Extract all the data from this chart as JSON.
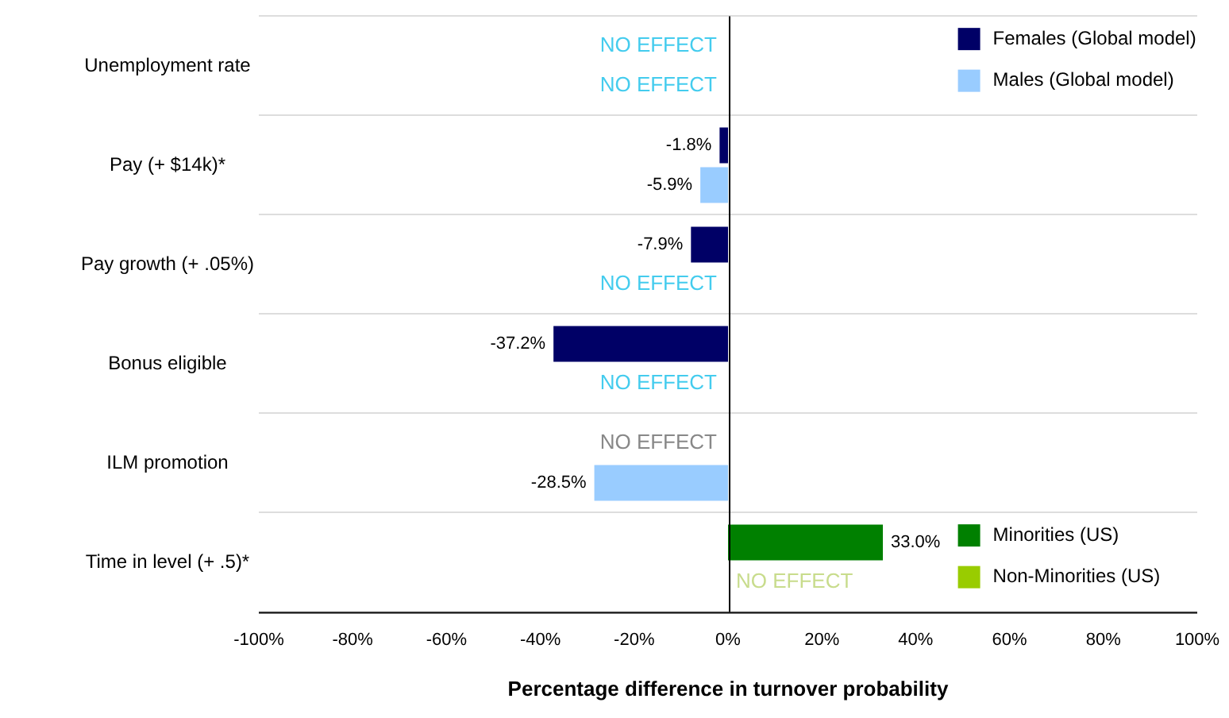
{
  "chart_data": {
    "type": "bar",
    "orientation": "horizontal",
    "xlabel": "Percentage difference in turnover probability",
    "categories": [
      "Unemployment rate",
      "Pay (+ $14k)*",
      "Pay growth (+ .05%)",
      "Bonus eligible",
      "ILM promotion",
      "Time in level (+ .5)*"
    ],
    "series": [
      {
        "name": "Females (Global model)",
        "color": "#000066",
        "colors": [
          "#44ccee",
          "#000066",
          "#000066",
          "#000066",
          "#888888",
          "#000066"
        ],
        "values": [
          null,
          -1.8,
          -7.9,
          -37.2,
          null,
          null
        ],
        "value_labels": [
          "NO EFFECT",
          "-1.8%",
          "-7.9%",
          "-37.2%",
          "NO EFFECT",
          null
        ]
      },
      {
        "name": "Males (Global model)",
        "color": "#99ccff",
        "colors": [
          "#44ccee",
          "#99ccff",
          "#44ccee",
          "#44ccee",
          "#99ccff",
          "#99ccff"
        ],
        "values": [
          null,
          -5.9,
          null,
          null,
          -28.5,
          null
        ],
        "value_labels": [
          "NO EFFECT",
          "-5.9%",
          "NO EFFECT",
          "NO EFFECT",
          "-28.5%",
          null
        ]
      },
      {
        "name": "Minorities (US)",
        "color": "#008000",
        "values": [
          null,
          null,
          null,
          null,
          null,
          33.0
        ],
        "value_labels": [
          null,
          null,
          null,
          null,
          null,
          "33.0%"
        ]
      },
      {
        "name": "Non-Minorities (US)",
        "color": "#99cc00",
        "colors": [
          "#99cc00",
          "#99cc00",
          "#99cc00",
          "#99cc00",
          "#99cc00",
          "#c8dc8c"
        ],
        "values": [
          null,
          null,
          null,
          null,
          null,
          null
        ],
        "value_labels": [
          null,
          null,
          null,
          null,
          null,
          "NO EFFECT"
        ]
      }
    ],
    "xlim": [
      -100,
      100
    ],
    "xticks": [
      {
        "value": -100,
        "label": "-100%"
      },
      {
        "value": -80,
        "label": "-80%"
      },
      {
        "value": -60,
        "label": "-60%"
      },
      {
        "value": -40,
        "label": "-40%"
      },
      {
        "value": -20,
        "label": "-20%"
      },
      {
        "value": 0,
        "label": "0%"
      },
      {
        "value": 20,
        "label": "20%"
      },
      {
        "value": 40,
        "label": "40%"
      },
      {
        "value": 60,
        "label": "60%"
      },
      {
        "value": 80,
        "label": "80%"
      },
      {
        "value": 100,
        "label": "100%"
      }
    ],
    "grid": "y",
    "legend": "right"
  }
}
